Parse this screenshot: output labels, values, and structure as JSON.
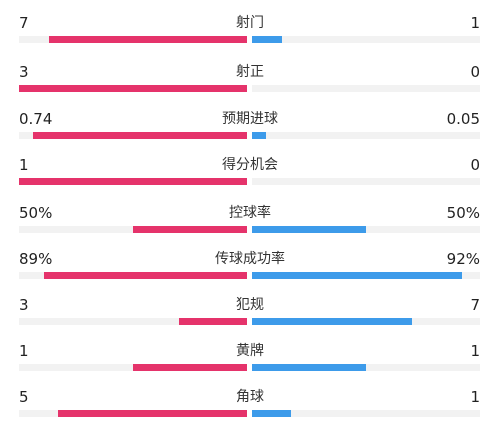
{
  "colors": {
    "home": "#e5336b",
    "away": "#3d9bea",
    "track": "#f2f2f2"
  },
  "stats": [
    {
      "label": "射门",
      "home_text": "7",
      "away_text": "1",
      "home_fill": 0.87,
      "away_fill": 0.13
    },
    {
      "label": "射正",
      "home_text": "3",
      "away_text": "0",
      "home_fill": 1.0,
      "away_fill": 0.0
    },
    {
      "label": "预期进球",
      "home_text": "0.74",
      "away_text": "0.05",
      "home_fill": 0.94,
      "away_fill": 0.06
    },
    {
      "label": "得分机会",
      "home_text": "1",
      "away_text": "0",
      "home_fill": 1.0,
      "away_fill": 0.0
    },
    {
      "label": "控球率",
      "home_text": "50%",
      "away_text": "50%",
      "home_fill": 0.5,
      "away_fill": 0.5
    },
    {
      "label": "传球成功率",
      "home_text": "89%",
      "away_text": "92%",
      "home_fill": 0.89,
      "away_fill": 0.92
    },
    {
      "label": "犯规",
      "home_text": "3",
      "away_text": "7",
      "home_fill": 0.3,
      "away_fill": 0.7
    },
    {
      "label": "黄牌",
      "home_text": "1",
      "away_text": "1",
      "home_fill": 0.5,
      "away_fill": 0.5
    },
    {
      "label": "角球",
      "home_text": "5",
      "away_text": "1",
      "home_fill": 0.83,
      "away_fill": 0.17
    }
  ]
}
